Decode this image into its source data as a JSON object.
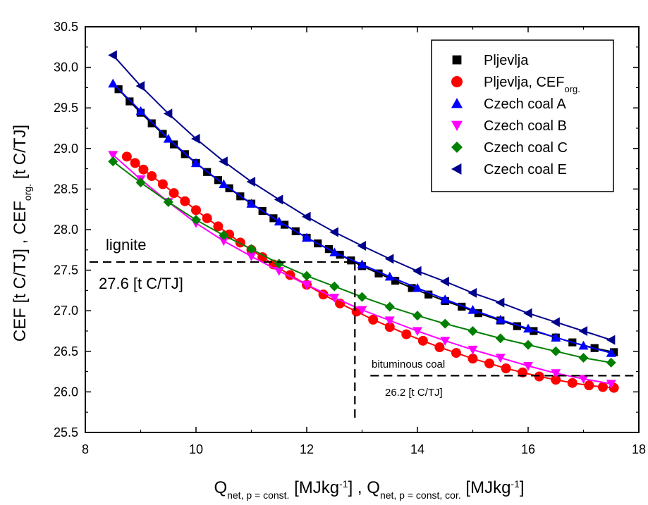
{
  "chart_data": {
    "type": "scatter",
    "xlabel": {
      "parts": [
        {
          "text": "Q"
        },
        {
          "text": "net, p = const.",
          "sub": true
        },
        {
          "text": " [MJkg"
        },
        {
          "text": "-1",
          "sup": true
        },
        {
          "text": "] , Q"
        },
        {
          "text": "net, p = const, cor.",
          "sub": true
        },
        {
          "text": " [MJkg"
        },
        {
          "text": "-1",
          "sup": true
        },
        {
          "text": "]"
        }
      ]
    },
    "ylabel": {
      "parts": [
        {
          "text": "CEF [t C/TJ] , CEF"
        },
        {
          "text": "org.",
          "sub": true
        },
        {
          "text": " [t C/TJ]"
        }
      ]
    },
    "xlim": [
      8,
      18
    ],
    "ylim": [
      25.5,
      30.5
    ],
    "xticks": [
      "8",
      "10",
      "12",
      "14",
      "16",
      "18"
    ],
    "xtick_values": [
      8,
      10,
      12,
      14,
      16,
      18
    ],
    "yticks": [
      "25.5",
      "26.0",
      "26.5",
      "27.0",
      "27.5",
      "28.0",
      "28.5",
      "29.0",
      "29.5",
      "30.0",
      "30.5"
    ],
    "ytick_values": [
      25.5,
      26.0,
      26.5,
      27.0,
      27.5,
      28.0,
      28.5,
      29.0,
      29.5,
      30.0,
      30.5
    ],
    "grid": false,
    "legend_position": "top-right",
    "series": [
      {
        "name": "Pljevlja",
        "marker": "square",
        "color": "#000000",
        "x": [
          8.6,
          8.8,
          9.0,
          9.2,
          9.4,
          9.6,
          9.8,
          10.0,
          10.2,
          10.4,
          10.6,
          10.8,
          11.0,
          11.2,
          11.4,
          11.6,
          11.8,
          12.0,
          12.2,
          12.4,
          12.6,
          12.8,
          13.0,
          13.3,
          13.6,
          13.9,
          14.2,
          14.5,
          14.8,
          15.1,
          15.5,
          15.8,
          16.1,
          16.5,
          16.8,
          17.2,
          17.55
        ],
        "y": [
          29.73,
          29.58,
          29.44,
          29.31,
          29.18,
          29.05,
          28.93,
          28.82,
          28.71,
          28.61,
          28.51,
          28.41,
          28.32,
          28.23,
          28.14,
          28.06,
          27.98,
          27.9,
          27.83,
          27.76,
          27.69,
          27.62,
          27.55,
          27.46,
          27.37,
          27.28,
          27.2,
          27.12,
          27.05,
          26.97,
          26.88,
          26.81,
          26.75,
          26.67,
          26.61,
          26.54,
          26.49
        ]
      },
      {
        "name": "Pljevlja, CEF",
        "name_sub": "org.",
        "marker": "circle",
        "color": "#ff0000",
        "x": [
          8.75,
          8.9,
          9.05,
          9.2,
          9.4,
          9.6,
          9.8,
          10.0,
          10.2,
          10.4,
          10.6,
          10.8,
          11.0,
          11.2,
          11.4,
          11.7,
          12.0,
          12.3,
          12.6,
          12.9,
          13.2,
          13.5,
          13.8,
          14.1,
          14.4,
          14.7,
          15.0,
          15.3,
          15.6,
          15.9,
          16.2,
          16.5,
          16.8,
          17.1,
          17.35,
          17.55
        ],
        "y": [
          28.9,
          28.82,
          28.74,
          28.66,
          28.56,
          28.45,
          28.35,
          28.24,
          28.14,
          28.04,
          27.94,
          27.84,
          27.75,
          27.66,
          27.57,
          27.44,
          27.32,
          27.2,
          27.09,
          26.99,
          26.89,
          26.8,
          26.71,
          26.63,
          26.55,
          26.48,
          26.41,
          26.35,
          26.29,
          26.24,
          26.19,
          26.15,
          26.11,
          26.08,
          26.06,
          26.05
        ]
      },
      {
        "name": "Czech coal A",
        "marker": "triangle-up",
        "color": "#0000ff",
        "x": [
          8.5,
          9.0,
          9.5,
          10.0,
          10.5,
          11.0,
          11.5,
          12.0,
          12.5,
          13.0,
          13.5,
          14.0,
          14.5,
          15.0,
          15.5,
          16.0,
          16.5,
          17.0,
          17.5
        ],
        "y": [
          29.8,
          29.46,
          29.12,
          28.82,
          28.56,
          28.32,
          28.1,
          27.9,
          27.72,
          27.57,
          27.42,
          27.28,
          27.14,
          27.01,
          26.89,
          26.78,
          26.67,
          26.57,
          26.48
        ]
      },
      {
        "name": "Czech coal B",
        "marker": "triangle-down",
        "color": "#ff00ff",
        "x": [
          8.5,
          9.0,
          9.5,
          10.0,
          10.5,
          11.0,
          11.5,
          12.0,
          12.5,
          13.0,
          13.5,
          14.0,
          14.5,
          15.0,
          15.5,
          16.0,
          16.5,
          17.0,
          17.5
        ],
        "y": [
          28.92,
          28.62,
          28.34,
          28.08,
          27.86,
          27.67,
          27.49,
          27.32,
          27.16,
          27.01,
          26.88,
          26.75,
          26.63,
          26.52,
          26.42,
          26.32,
          26.23,
          26.16,
          26.1
        ]
      },
      {
        "name": "Czech coal C",
        "marker": "diamond",
        "color": "#008000",
        "x": [
          8.5,
          9.0,
          9.5,
          10.0,
          10.5,
          11.0,
          11.5,
          12.0,
          12.5,
          13.0,
          13.5,
          14.0,
          14.5,
          15.0,
          15.5,
          16.0,
          16.5,
          17.0,
          17.5
        ],
        "y": [
          28.84,
          28.58,
          28.34,
          28.12,
          27.93,
          27.76,
          27.58,
          27.43,
          27.3,
          27.17,
          27.05,
          26.94,
          26.84,
          26.75,
          26.66,
          26.58,
          26.5,
          26.42,
          26.36
        ]
      },
      {
        "name": "Czech coal E",
        "marker": "triangle-left",
        "color": "#00008b",
        "x": [
          8.5,
          9.0,
          9.5,
          10.0,
          10.5,
          11.0,
          11.5,
          12.0,
          12.5,
          13.0,
          13.5,
          14.0,
          14.5,
          15.0,
          15.5,
          16.0,
          16.5,
          17.0,
          17.5
        ],
        "y": [
          30.15,
          29.77,
          29.43,
          29.12,
          28.84,
          28.59,
          28.37,
          28.16,
          27.97,
          27.8,
          27.64,
          27.49,
          27.36,
          27.22,
          27.1,
          26.97,
          26.86,
          26.75,
          26.64
        ]
      }
    ],
    "annotations": [
      {
        "text": "lignite",
        "size": "big"
      },
      {
        "text": "27.6 [t C/TJ]",
        "size": "big"
      },
      {
        "text": "bituminous coal",
        "size": "small"
      },
      {
        "text": "26.2 [t C/TJ]",
        "size": "small"
      }
    ],
    "reference_lines": [
      {
        "value_y": 27.6,
        "value_x": 12.87,
        "label": "lignite"
      },
      {
        "value_y": 26.2,
        "value_x": 12.87,
        "label": "bituminous coal"
      }
    ]
  }
}
